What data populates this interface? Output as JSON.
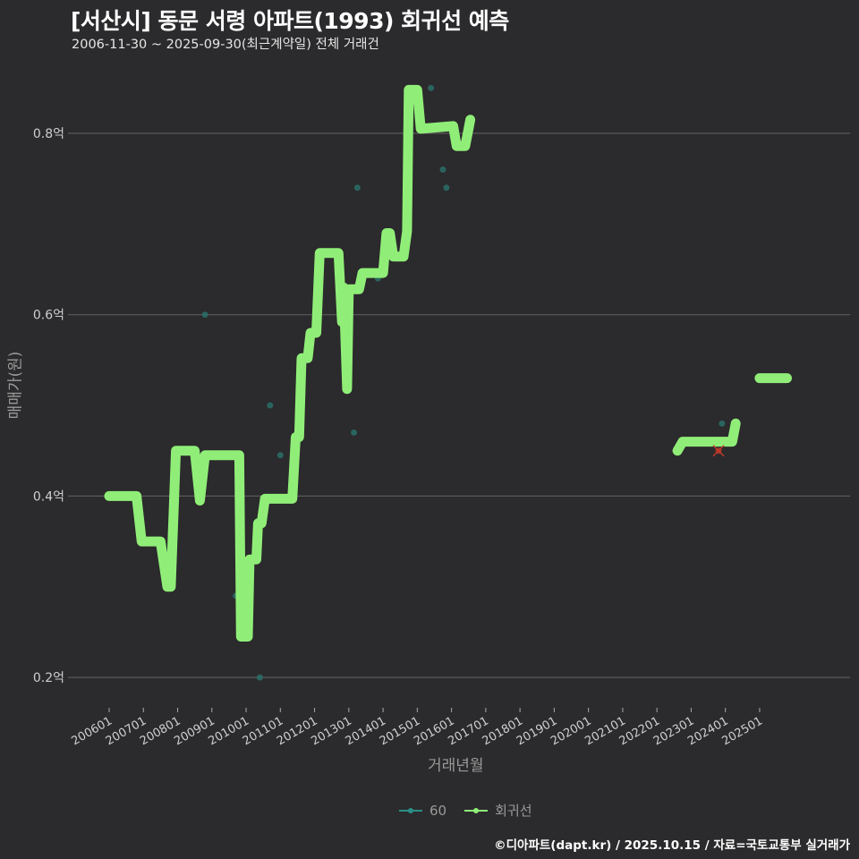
{
  "header": {
    "title": "[서산시] 동문 서령 아파트(1993) 회귀선 예측",
    "subtitle": "2006-11-30 ~ 2025-09-30(최근계약일) 전체 거래건"
  },
  "axes": {
    "y_title": "매매가(원)",
    "x_title": "거래년월"
  },
  "legend": {
    "items": [
      {
        "label": "60",
        "color": "#2a8f88"
      },
      {
        "label": "회귀선",
        "color": "#90ee78"
      }
    ]
  },
  "footer": {
    "credit": "©디아파트(dapt.kr) / 2025.10.15 / 자료=국토교통부 실거래가"
  },
  "colors": {
    "background": "#2b2a2c",
    "grid": "#5a5a5a",
    "regression": "#90ee78",
    "points": "#2a6e68",
    "latest_marker": "#c0392b"
  },
  "chart_data": {
    "type": "line",
    "title": "[서산시] 동문 서령 아파트(1993) 회귀선 예측",
    "subtitle": "2006-11-30 ~ 2025-09-30(최근계약일) 전체 거래건",
    "xlabel": "거래년월",
    "ylabel": "매매가(원)",
    "x_ticks": [
      "200601",
      "200701",
      "200801",
      "200901",
      "201001",
      "201101",
      "201201",
      "201301",
      "201401",
      "201501",
      "201601",
      "201701",
      "201801",
      "201901",
      "202001",
      "202101",
      "202201",
      "202301",
      "202401",
      "202501"
    ],
    "y_ticks": [
      {
        "value": 0.2,
        "label": "0.2억"
      },
      {
        "value": 0.4,
        "label": "0.4억"
      },
      {
        "value": 0.6,
        "label": "0.6억"
      },
      {
        "value": 0.8,
        "label": "0.8억"
      }
    ],
    "ylim": [
      0.17,
      0.86
    ],
    "xlim": [
      2005.6,
      2028.1
    ],
    "grid": true,
    "legend_position": "bottom",
    "series": [
      {
        "name": "회귀선",
        "segments": [
          [
            [
              2006.0,
              0.4
            ],
            [
              2006.8,
              0.4
            ],
            [
              2006.95,
              0.35
            ],
            [
              2007.5,
              0.35
            ],
            [
              2007.7,
              0.3
            ],
            [
              2007.8,
              0.3
            ],
            [
              2007.95,
              0.45
            ],
            [
              2008.5,
              0.45
            ],
            [
              2008.65,
              0.395
            ],
            [
              2008.8,
              0.445
            ],
            [
              2009.8,
              0.445
            ],
            [
              2009.85,
              0.245
            ],
            [
              2010.05,
              0.245
            ],
            [
              2010.1,
              0.33
            ],
            [
              2010.3,
              0.33
            ],
            [
              2010.35,
              0.37
            ],
            [
              2010.45,
              0.37
            ],
            [
              2010.55,
              0.397
            ],
            [
              2011.35,
              0.397
            ],
            [
              2011.45,
              0.465
            ],
            [
              2011.55,
              0.465
            ],
            [
              2011.62,
              0.552
            ],
            [
              2011.8,
              0.552
            ],
            [
              2011.88,
              0.58
            ],
            [
              2012.05,
              0.58
            ],
            [
              2012.15,
              0.668
            ],
            [
              2012.7,
              0.668
            ],
            [
              2012.8,
              0.592
            ],
            [
              2012.85,
              0.63
            ],
            [
              2012.95,
              0.518
            ],
            [
              2013.0,
              0.628
            ],
            [
              2013.3,
              0.628
            ],
            [
              2013.4,
              0.646
            ],
            [
              2014.0,
              0.646
            ],
            [
              2014.1,
              0.69
            ],
            [
              2014.2,
              0.69
            ],
            [
              2014.3,
              0.664
            ],
            [
              2014.6,
              0.664
            ],
            [
              2014.7,
              0.692
            ],
            [
              2014.75,
              0.848
            ],
            [
              2015.0,
              0.848
            ],
            [
              2015.1,
              0.805
            ],
            [
              2016.05,
              0.808
            ],
            [
              2016.15,
              0.786
            ],
            [
              2016.4,
              0.786
            ],
            [
              2016.55,
              0.815
            ]
          ],
          [
            [
              2022.6,
              0.45
            ],
            [
              2022.75,
              0.46
            ],
            [
              2024.2,
              0.46
            ],
            [
              2024.3,
              0.48
            ]
          ],
          [
            [
              2025.0,
              0.53
            ],
            [
              2025.8,
              0.53
            ]
          ]
        ]
      },
      {
        "name": "60",
        "type": "scatter",
        "points": [
          [
            2008.8,
            0.6
          ],
          [
            2009.7,
            0.29
          ],
          [
            2010.4,
            0.2
          ],
          [
            2010.7,
            0.5
          ],
          [
            2011.0,
            0.445
          ],
          [
            2013.15,
            0.47
          ],
          [
            2013.25,
            0.74
          ],
          [
            2013.85,
            0.64
          ],
          [
            2015.4,
            0.85
          ],
          [
            2015.75,
            0.76
          ],
          [
            2015.85,
            0.74
          ],
          [
            2023.9,
            0.48
          ]
        ]
      },
      {
        "name": "최근거래",
        "type": "marker",
        "points": [
          [
            2023.8,
            0.45
          ]
        ]
      }
    ]
  }
}
